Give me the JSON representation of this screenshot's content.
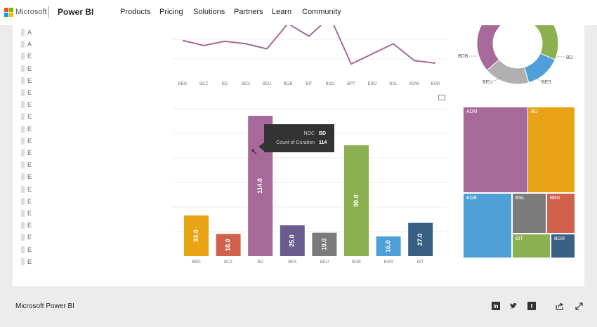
{
  "nav": {
    "ms_word": "Microsoft",
    "brand": "Power BI",
    "items": [
      "Products",
      "Pricing",
      "Solutions",
      "Partners",
      "Learn",
      "Community"
    ]
  },
  "slicer": {
    "items": [
      "A",
      "A",
      "E",
      "E",
      "E",
      "E",
      "E",
      "E",
      "E",
      "E",
      "E",
      "E",
      "E",
      "E",
      "E",
      "E",
      "E",
      "E",
      "E",
      "E"
    ]
  },
  "chart_data": [
    {
      "type": "line",
      "categories": [
        "BBG",
        "BCZ",
        "BD",
        "BES",
        "BEU",
        "BGB",
        "BIT",
        "BNO",
        "BPT",
        "BRO",
        "BSL",
        "BSW",
        "BUR"
      ],
      "values": [
        42,
        36,
        41,
        38,
        32,
        62,
        47,
        70,
        14,
        26,
        38,
        18,
        15
      ],
      "color": "#a66999",
      "ylim": [
        0,
        60
      ]
    },
    {
      "type": "bar",
      "categories": [
        "BBG",
        "BCZ",
        "BD",
        "BES",
        "BEU",
        "BGB",
        "BGR",
        "BIT"
      ],
      "values": [
        33.0,
        18.0,
        114.0,
        25.0,
        19.0,
        90.0,
        16.0,
        27.0
      ],
      "data_labels": [
        "33.0",
        "18.0",
        "114.0",
        "25.0",
        "19.0",
        "90.0",
        "16.0",
        "27.0"
      ],
      "colors": [
        "#e8a317",
        "#d1604d",
        "#a66999",
        "#6a5c8f",
        "#7b7b7b",
        "#8bb04f",
        "#4f9fd9",
        "#3a5f85"
      ],
      "ylim": [
        0,
        114
      ]
    },
    {
      "type": "pie",
      "labels": [
        "BDB",
        "BD",
        "BEU",
        "BES"
      ],
      "slices": [
        {
          "label": "BD",
          "value": 16,
          "color": "#8bb04f"
        },
        {
          "label": "BES",
          "value": 11,
          "color": "#4f9fd9"
        },
        {
          "label": "BEU",
          "value": 14,
          "color": "#b0b0b0"
        },
        {
          "label": "BDB",
          "value": 20,
          "color": "#a66999"
        },
        {
          "label": "",
          "value": 9,
          "color": "#333333"
        },
        {
          "label": "",
          "value": 8,
          "color": "#d1604d"
        }
      ]
    },
    {
      "type": "treemap",
      "cells": [
        {
          "label": "ADM",
          "color": "#a66999"
        },
        {
          "label": "BD",
          "color": "#e8a317"
        },
        {
          "label": "BGB",
          "color": "#4f9fd9"
        },
        {
          "label": "BSL",
          "color": "#7b7b7b"
        },
        {
          "label": "BBG",
          "color": "#d1604d"
        },
        {
          "label": "BIT",
          "color": "#8bb04f"
        },
        {
          "label": "BGR",
          "color": "#3a5f85"
        }
      ]
    }
  ],
  "tooltip": {
    "rows": [
      {
        "key": "NOC",
        "value": "BD"
      },
      {
        "key": "Count of Duration",
        "value": "114"
      }
    ]
  },
  "bottom": {
    "title": "Microsoft Power BI",
    "icons": [
      "linkedin-icon",
      "twitter-icon",
      "facebook-icon",
      "share-icon",
      "fullscreen-icon"
    ]
  }
}
